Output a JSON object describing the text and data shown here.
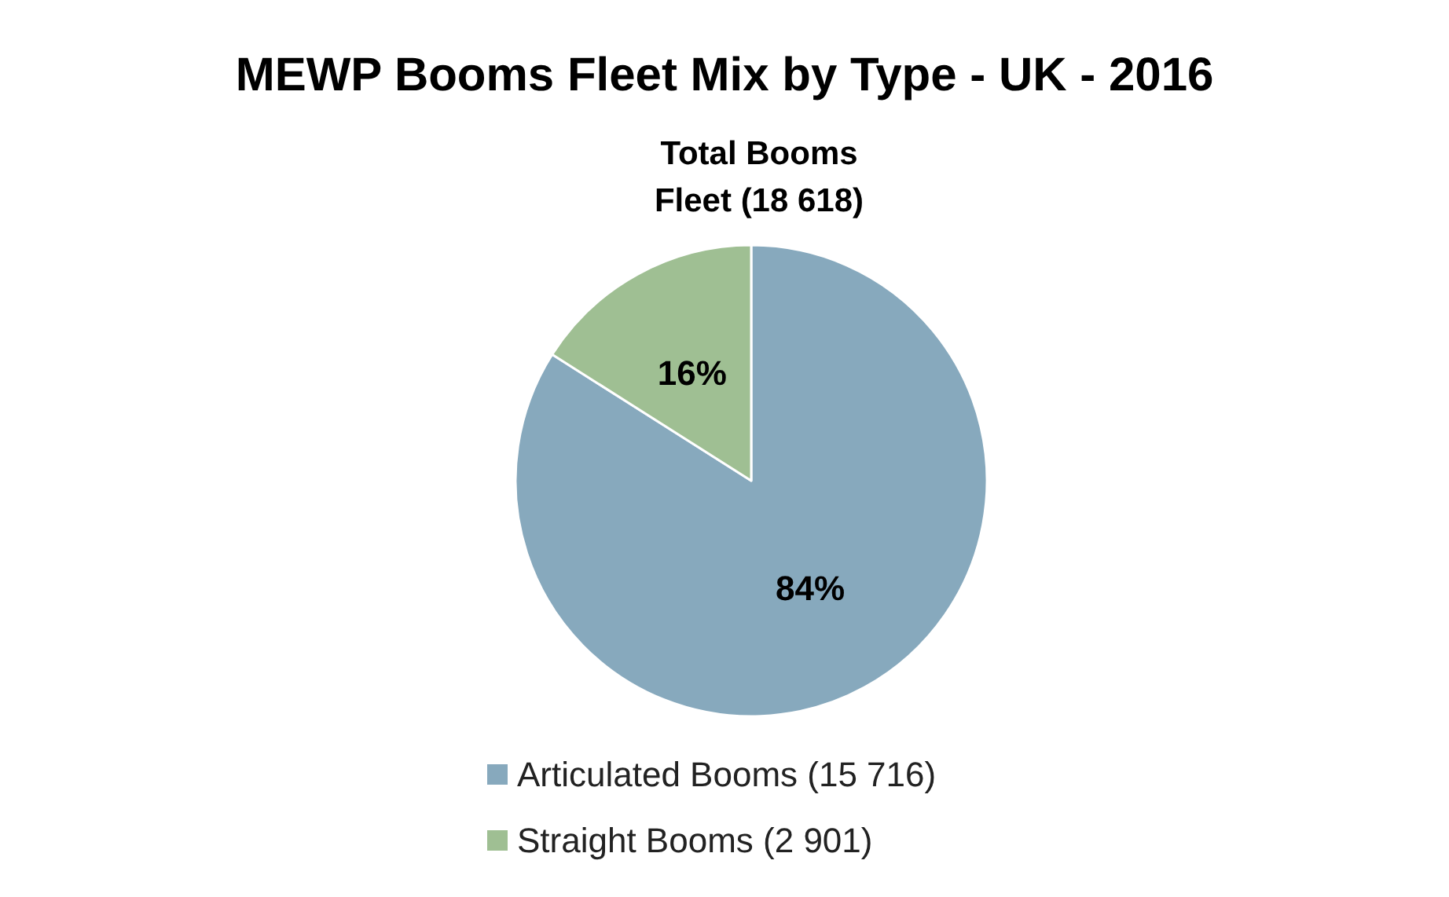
{
  "chart_data": {
    "type": "pie",
    "title": "MEWP Booms Fleet Mix by Type - UK - 2016",
    "subtitle": "Total Booms\nFleet (18 618)",
    "categories": [
      "Articulated Booms (15 716)",
      "Straight Booms (2 901)"
    ],
    "values": [
      84,
      16
    ],
    "colors": [
      "#87a9bd",
      "#9fbf93"
    ],
    "value_labels": [
      "84%",
      "16%"
    ],
    "legend": "bottom"
  }
}
